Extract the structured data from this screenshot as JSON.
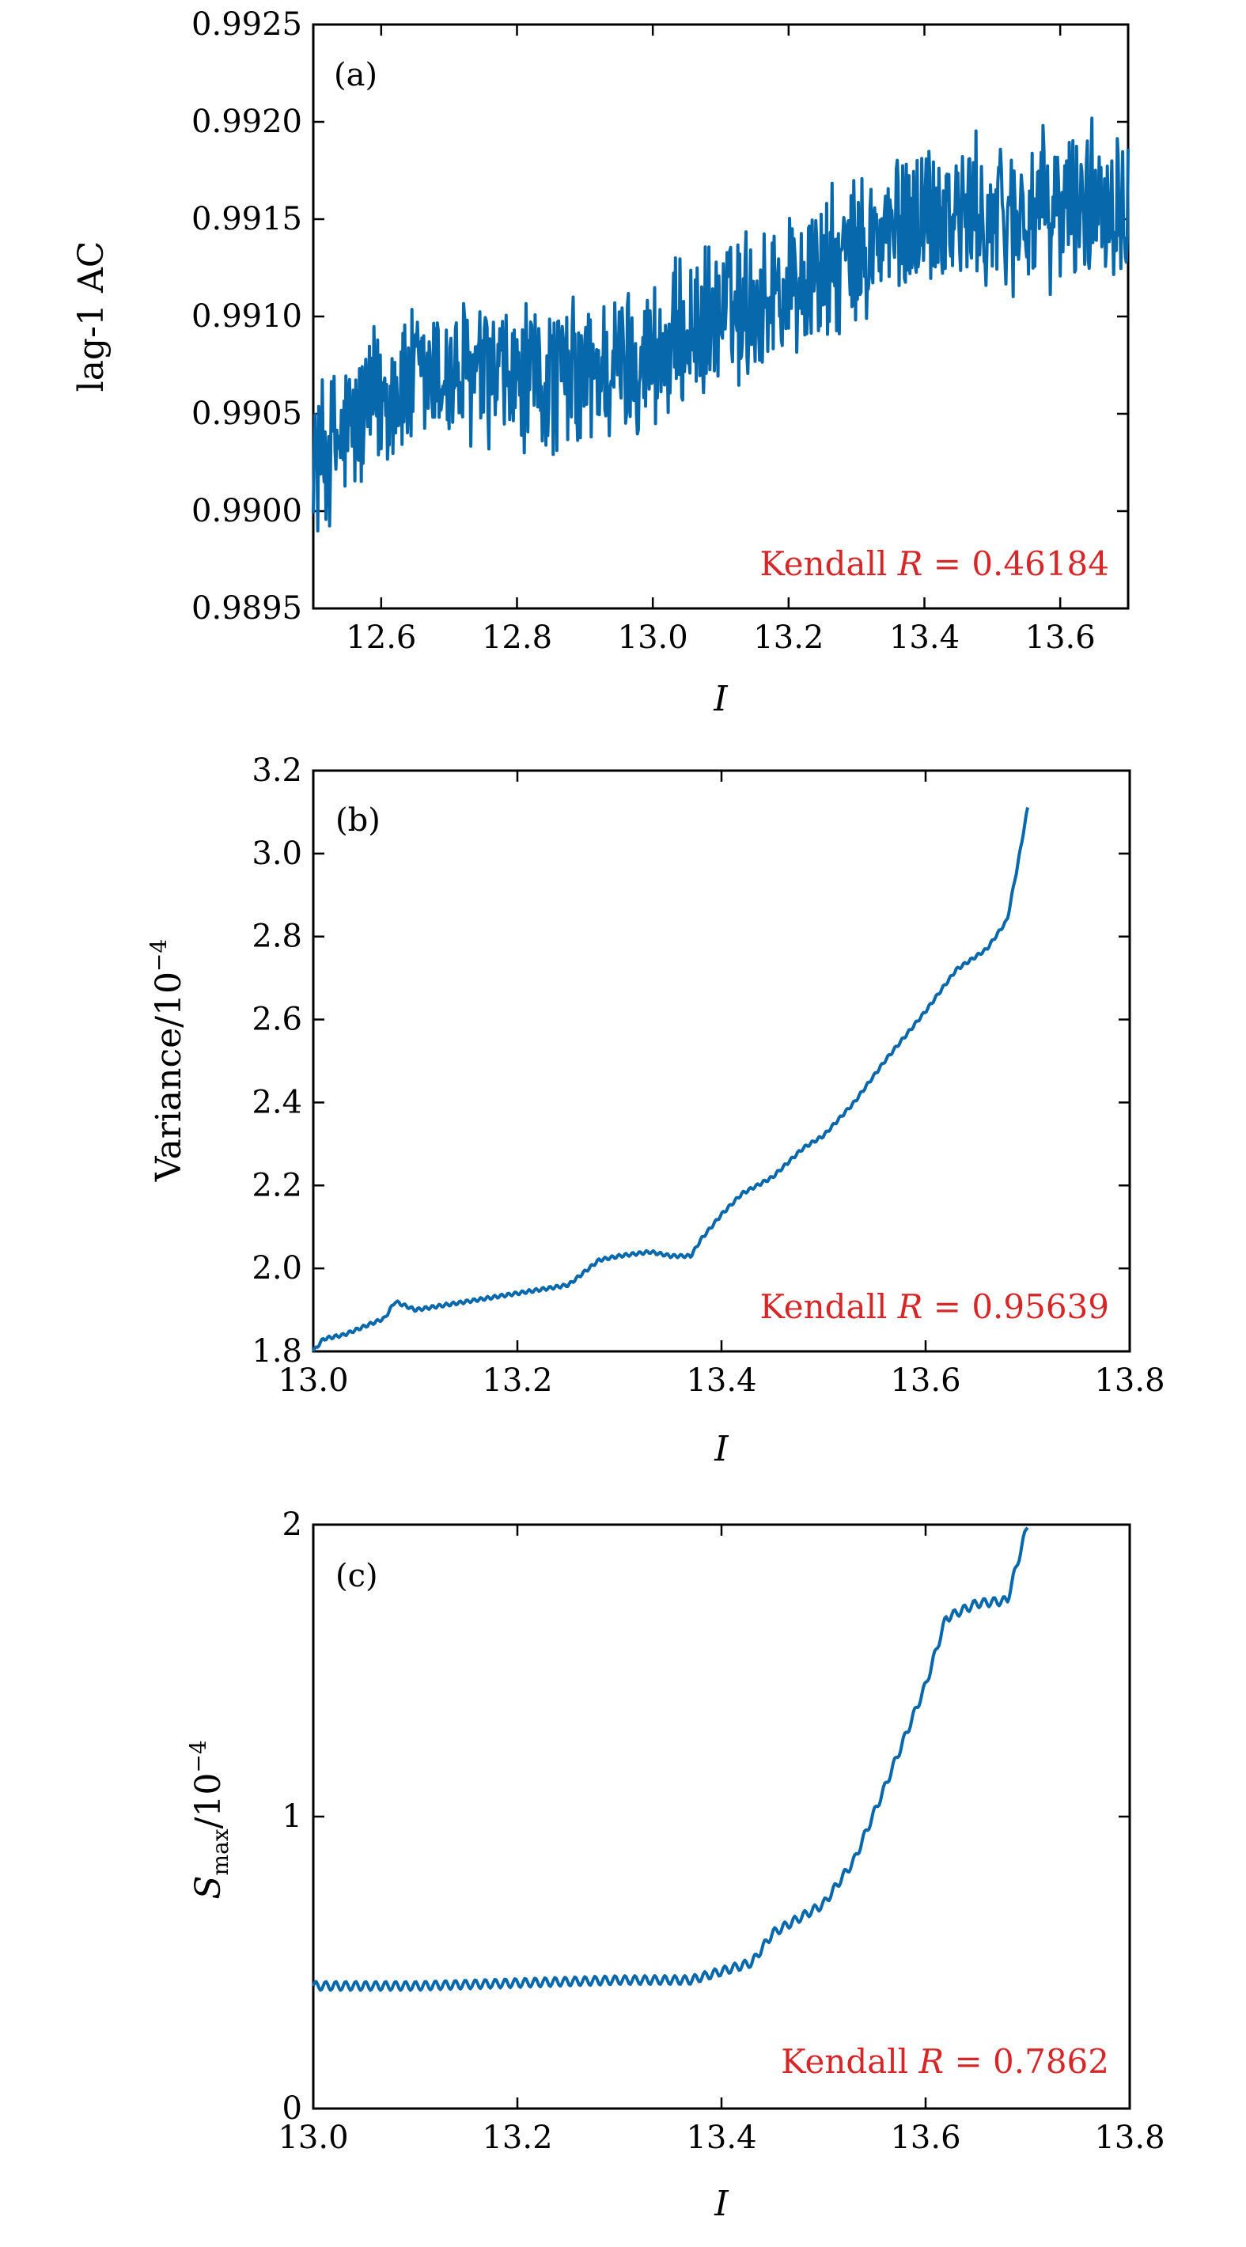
{
  "chart_data": [
    {
      "type": "line",
      "panel_label": "(a)",
      "xlabel": "I",
      "ylabel": "lag-1 AC",
      "xlim": [
        12.5,
        13.7
      ],
      "ylim": [
        0.9895,
        0.9925
      ],
      "xticks": [
        12.6,
        12.8,
        13.0,
        13.2,
        13.4,
        13.6
      ],
      "xtick_labels": [
        "12.6",
        "12.8",
        "13.0",
        "13.2",
        "13.4",
        "13.6"
      ],
      "yticks": [
        0.9895,
        0.99,
        0.9905,
        0.991,
        0.9915,
        0.992,
        0.9925
      ],
      "ytick_labels": [
        "0.9895",
        "0.9900",
        "0.9905",
        "0.9910",
        "0.9915",
        "0.9920",
        "0.9925"
      ],
      "annotation": {
        "prefix": "Kendall ",
        "var": "R",
        "value": " = 0.46184"
      },
      "noisy": true,
      "noise": 0.00045,
      "series": [
        {
          "name": "lag-1 AC",
          "color": "#0868ac",
          "x": [
            12.5,
            12.55,
            12.6,
            12.7,
            12.8,
            12.9,
            13.0,
            13.1,
            13.2,
            13.3,
            13.4,
            13.5,
            13.6,
            13.7
          ],
          "y": [
            0.99025,
            0.9904,
            0.9906,
            0.9907,
            0.99065,
            0.9907,
            0.9908,
            0.991,
            0.99115,
            0.9913,
            0.99155,
            0.9915,
            0.99155,
            0.99165
          ]
        }
      ]
    },
    {
      "type": "line",
      "panel_label": "(b)",
      "xlabel": "I",
      "ylabel_text": "Variance/10",
      "ylabel_exp": "−4",
      "xlim": [
        13.0,
        13.8
      ],
      "ylim": [
        1.8,
        3.2
      ],
      "xticks": [
        13.0,
        13.2,
        13.4,
        13.6,
        13.8
      ],
      "xtick_labels": [
        "13.0",
        "13.2",
        "13.4",
        "13.6",
        "13.8"
      ],
      "yticks": [
        1.8,
        2.0,
        2.2,
        2.4,
        2.6,
        2.8,
        3.0,
        3.2
      ],
      "ytick_labels": [
        "1.8",
        "2.0",
        "2.2",
        "2.4",
        "2.6",
        "2.8",
        "3.0",
        "3.2"
      ],
      "annotation": {
        "prefix": "Kendall ",
        "var": "R",
        "value": " = 0.95639"
      },
      "noisy": false,
      "series": [
        {
          "name": "Variance",
          "color": "#0868ac",
          "x": [
            13.0,
            13.01,
            13.03,
            13.05,
            13.07,
            13.08,
            13.1,
            13.15,
            13.2,
            13.25,
            13.28,
            13.3,
            13.33,
            13.35,
            13.37,
            13.38,
            13.4,
            13.42,
            13.45,
            13.48,
            13.5,
            13.53,
            13.56,
            13.6,
            13.63,
            13.66,
            13.68,
            13.69,
            13.7
          ],
          "y": [
            1.8,
            1.83,
            1.84,
            1.86,
            1.88,
            1.92,
            1.9,
            1.92,
            1.94,
            1.96,
            2.02,
            2.03,
            2.04,
            2.03,
            2.03,
            2.07,
            2.13,
            2.18,
            2.22,
            2.29,
            2.32,
            2.4,
            2.5,
            2.62,
            2.72,
            2.77,
            2.84,
            2.97,
            3.11
          ]
        }
      ]
    },
    {
      "type": "line",
      "panel_label": "(c)",
      "xlabel": "I",
      "ylabel_var": "S",
      "ylabel_sub": "max",
      "ylabel_text": "/10",
      "ylabel_exp": "−4",
      "xlim": [
        13.0,
        13.8
      ],
      "ylim": [
        0,
        2
      ],
      "xticks": [
        13.0,
        13.2,
        13.4,
        13.6,
        13.8
      ],
      "xtick_labels": [
        "13.0",
        "13.2",
        "13.4",
        "13.6",
        "13.8"
      ],
      "yticks": [
        0,
        1,
        2
      ],
      "ytick_labels": [
        "0",
        "1",
        "2"
      ],
      "annotation": {
        "prefix": "Kendall ",
        "var": "R",
        "value": " = 0.7862"
      },
      "noisy": false,
      "ripple": 0.015,
      "series": [
        {
          "name": "S_max",
          "color": "#0868ac",
          "x": [
            13.0,
            13.1,
            13.2,
            13.3,
            13.37,
            13.4,
            13.43,
            13.45,
            13.48,
            13.5,
            13.53,
            13.56,
            13.6,
            13.62,
            13.65,
            13.68,
            13.7
          ],
          "y": [
            0.42,
            0.42,
            0.43,
            0.44,
            0.44,
            0.47,
            0.5,
            0.6,
            0.66,
            0.7,
            0.85,
            1.1,
            1.45,
            1.68,
            1.73,
            1.74,
            2.0
          ]
        }
      ]
    }
  ]
}
